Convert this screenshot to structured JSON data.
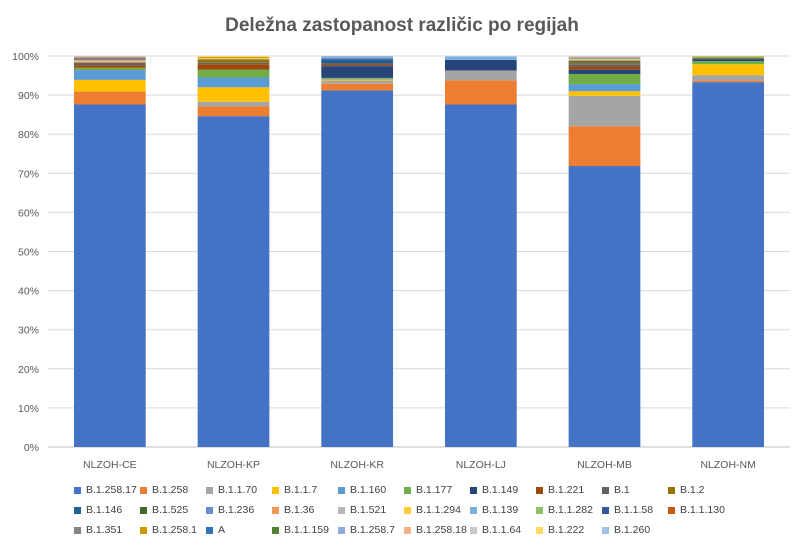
{
  "chart_data": {
    "type": "bar",
    "stacked": true,
    "normalized": true,
    "title": "Deležna zastopanost različic po regijah",
    "xlabel": "",
    "ylabel": "",
    "ylim": [
      0,
      100
    ],
    "yticks": [
      "0%",
      "10%",
      "20%",
      "30%",
      "40%",
      "50%",
      "60%",
      "70%",
      "80%",
      "90%",
      "100%"
    ],
    "grid": true,
    "legend_position": "bottom",
    "categories": [
      "NLZOH-CE",
      "NLZOH-KP",
      "NLZOH-KR",
      "NLZOH-LJ",
      "NLZOH-MB",
      "NLZOH-NM"
    ],
    "series": [
      {
        "name": "B.1.258.17",
        "color": "#4472c4",
        "values": [
          87.6,
          84.6,
          91.2,
          87.6,
          72.0,
          93.3
        ]
      },
      {
        "name": "B.1.258",
        "color": "#ed7d31",
        "values": [
          3.3,
          2.5,
          1.7,
          6.2,
          10.2,
          0.4
        ]
      },
      {
        "name": "B.1.1.70",
        "color": "#a5a5a5",
        "values": [
          0,
          1.2,
          0.8,
          2.5,
          7.8,
          1.4
        ]
      },
      {
        "name": "B.1.1.7",
        "color": "#ffc000",
        "values": [
          3.0,
          3.7,
          0.3,
          0,
          1.2,
          2.8
        ]
      },
      {
        "name": "B.1.160",
        "color": "#5b9bd5",
        "values": [
          2.5,
          2.5,
          0.2,
          0,
          1.8,
          0
        ]
      },
      {
        "name": "B.1.177",
        "color": "#70ad47",
        "values": [
          0.6,
          2.0,
          0.2,
          0,
          2.6,
          0.8
        ]
      },
      {
        "name": "B.1.149",
        "color": "#264478",
        "values": [
          0,
          0,
          3.0,
          2.7,
          1.1,
          0.5
        ]
      },
      {
        "name": "B.1.221",
        "color": "#9e480e",
        "values": [
          0.6,
          1.4,
          0.3,
          0,
          0.8,
          0
        ]
      },
      {
        "name": "B.1",
        "color": "#636363",
        "values": [
          0.7,
          0.4,
          0.5,
          0,
          0.6,
          0.2
        ]
      },
      {
        "name": "B.1.2",
        "color": "#997300",
        "values": [
          0,
          0.8,
          0,
          0,
          0.3,
          0
        ]
      },
      {
        "name": "B.1.146",
        "color": "#255e91",
        "values": [
          0,
          0,
          1.0,
          0,
          0.2,
          0
        ]
      },
      {
        "name": "B.1.525",
        "color": "#43682b",
        "values": [
          0,
          0,
          0,
          0,
          0.3,
          0.2
        ]
      },
      {
        "name": "B.1.236",
        "color": "#698ed0",
        "values": [
          0,
          0,
          0.3,
          0,
          0,
          0
        ]
      },
      {
        "name": "B.1.36",
        "color": "#f1975a",
        "values": [
          0.3,
          0,
          0,
          0,
          0.3,
          0
        ]
      },
      {
        "name": "B.1.521",
        "color": "#b7b7b7",
        "values": [
          0,
          0.2,
          0,
          0,
          0.2,
          0
        ]
      },
      {
        "name": "B.1.1.294",
        "color": "#ffcd33",
        "values": [
          0.2,
          0.2,
          0,
          0,
          0,
          0.2
        ]
      },
      {
        "name": "B.1.139",
        "color": "#7cafdd",
        "values": [
          0.3,
          0,
          0.3,
          0.8,
          0,
          0
        ]
      },
      {
        "name": "B.1.1.282",
        "color": "#8cc168",
        "values": [
          0,
          0,
          0,
          0,
          0.2,
          0.2
        ]
      },
      {
        "name": "B.1.1.58",
        "color": "#335aa1",
        "values": [
          0.2,
          0,
          0,
          0,
          0,
          0
        ]
      },
      {
        "name": "B.1.1.130",
        "color": "#c55a11",
        "values": [
          0.3,
          0,
          0,
          0,
          0,
          0
        ]
      },
      {
        "name": "B.1.351",
        "color": "#848484",
        "values": [
          0,
          0,
          0,
          0,
          0.2,
          0
        ]
      },
      {
        "name": "B.1.258.1",
        "color": "#cc9a00",
        "values": [
          0,
          0.3,
          0,
          0,
          0,
          0
        ]
      },
      {
        "name": "A",
        "color": "#2e75b6",
        "values": [
          0,
          0,
          0,
          0,
          0,
          0
        ]
      },
      {
        "name": "B.1.1.159",
        "color": "#548235",
        "values": [
          0,
          0,
          0,
          0,
          0,
          0
        ]
      },
      {
        "name": "B.1.258.7",
        "color": "#8faadc",
        "values": [
          0,
          0,
          0.2,
          0,
          0,
          0
        ]
      },
      {
        "name": "B.1.258.18",
        "color": "#f4b183",
        "values": [
          0.2,
          0,
          0,
          0,
          0.2,
          0
        ]
      },
      {
        "name": "B.1.1.64",
        "color": "#c9c9c9",
        "values": [
          0,
          0,
          0,
          0,
          0.2,
          0
        ]
      },
      {
        "name": "B.1.222",
        "color": "#ffd966",
        "values": [
          0,
          0.2,
          0,
          0,
          0,
          0
        ]
      },
      {
        "name": "B.1.260",
        "color": "#9dc3e6",
        "values": [
          0.2,
          0,
          0,
          0.2,
          0,
          0
        ]
      }
    ]
  }
}
